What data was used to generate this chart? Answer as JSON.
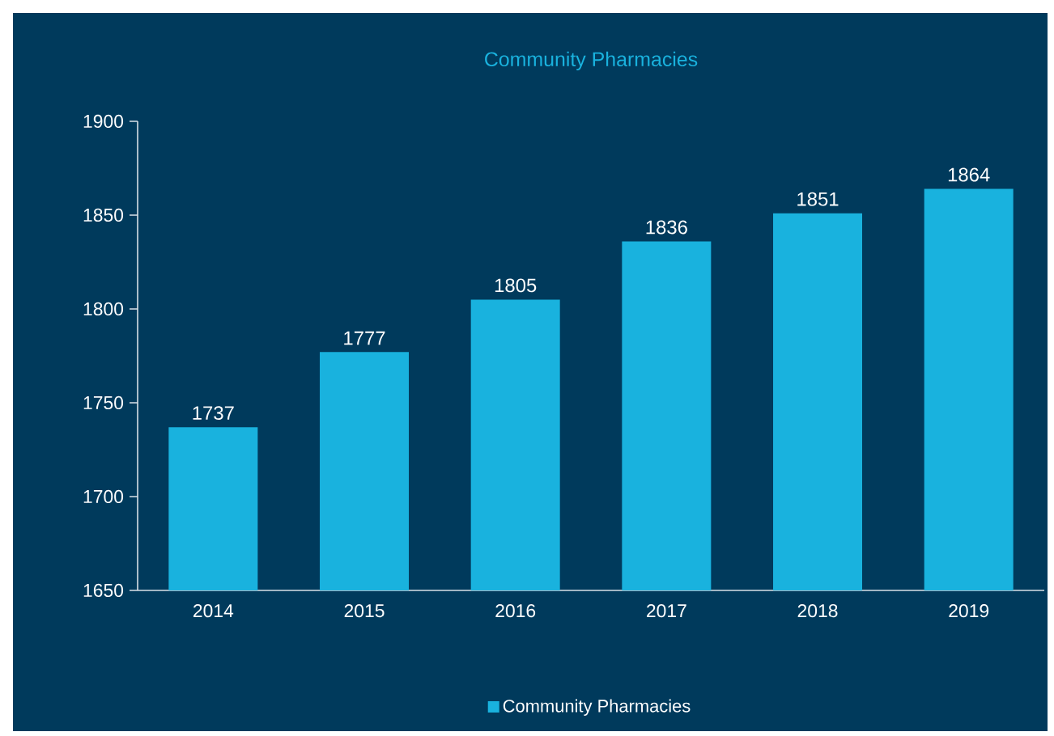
{
  "chart_data": {
    "type": "bar",
    "title": "Community Pharmacies",
    "categories": [
      "2014",
      "2015",
      "2016",
      "2017",
      "2018",
      "2019"
    ],
    "series": [
      {
        "name": "Community Pharmacies",
        "color": "#19b2de",
        "values": [
          1737,
          1777,
          1805,
          1836,
          1851,
          1864
        ]
      }
    ],
    "ylim": [
      1650,
      1900
    ],
    "yticks": [
      1650,
      1700,
      1750,
      1800,
      1850,
      1900
    ],
    "data_labels": true,
    "legend": "bottom",
    "grid": false
  }
}
